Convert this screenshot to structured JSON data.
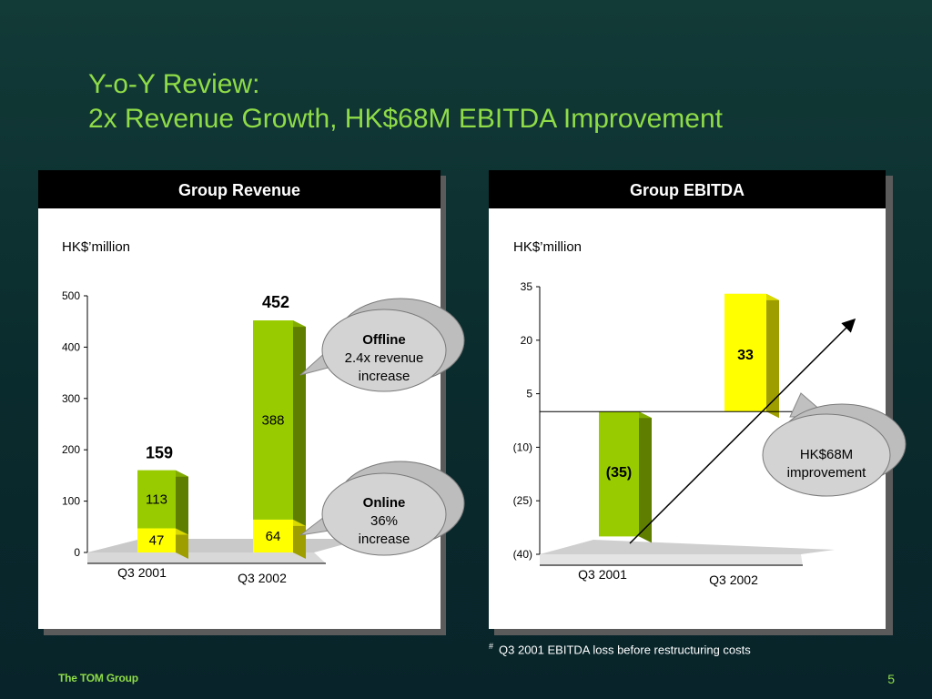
{
  "slide": {
    "title_line1": "Y-o-Y Review:",
    "title_line2": "2x Revenue Growth, HK$68M EBITDA Improvement",
    "footnote_mark": "#",
    "footnote_text": "Q3 2001 EBITDA loss before restructuring costs",
    "brand": "The TOM Group",
    "page_number": "5"
  },
  "revenue_panel": {
    "header": "Group Revenue",
    "unit": "HK$’million",
    "callout_offline_title": "Offline",
    "callout_offline_text1": "2.4x revenue",
    "callout_offline_text2": "increase",
    "callout_online_title": "Online",
    "callout_online_text1": "36%",
    "callout_online_text2": "increase"
  },
  "ebitda_panel": {
    "header": "Group EBITDA",
    "unit": "HK$’million",
    "callout_text1": "HK$68M",
    "callout_text2": "improvement"
  },
  "colors": {
    "green_front": "#99cc00",
    "green_side": "#5f8000",
    "yellow_front": "#ffff00",
    "yellow_side": "#b3b300",
    "title_green": "#8fdc48"
  },
  "chart_data": [
    {
      "type": "bar",
      "stacked": true,
      "title": "Group Revenue",
      "ylabel": "HK$’million",
      "categories": [
        "Q3 2001",
        "Q3 2002"
      ],
      "series": [
        {
          "values": [
            47,
            64
          ],
          "color": "#ffff00"
        },
        {
          "values": [
            113,
            388
          ],
          "color": "#99cc00"
        }
      ],
      "totals": [
        159,
        452
      ],
      "total_labels": [
        "159",
        "452"
      ],
      "segment_labels": [
        [
          "47",
          "113"
        ],
        [
          "64",
          "388"
        ]
      ],
      "ylim": [
        0,
        500
      ],
      "yticks": [
        0,
        100,
        200,
        300,
        400,
        500
      ],
      "ytick_labels": [
        "0",
        "100",
        "200",
        "300",
        "400",
        "500"
      ]
    },
    {
      "type": "bar",
      "title": "Group EBITDA",
      "ylabel": "HK$’million",
      "categories": [
        "Q3 2001",
        "Q3 2002"
      ],
      "values": [
        -35,
        33
      ],
      "value_labels": [
        "(35)",
        "33"
      ],
      "colors": [
        "#99cc00",
        "#ffff00"
      ],
      "ylim": [
        -40,
        35
      ],
      "yticks": [
        -40,
        -25,
        -10,
        5,
        20,
        35
      ],
      "ytick_labels": [
        "(40)",
        "(25)",
        "(10)",
        "5",
        "20",
        "35"
      ]
    }
  ]
}
